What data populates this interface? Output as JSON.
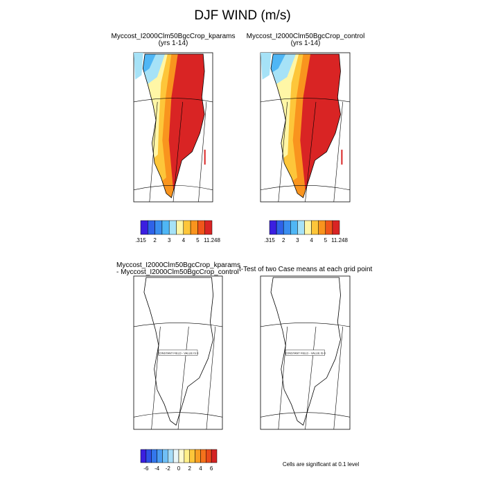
{
  "title": "DJF WIND (m/s)",
  "panels": [
    {
      "title": "Myccost_I2000Clm50BgcCrop_kparams",
      "subtitle": "(yrs 1-14)"
    },
    {
      "title": "Myccost_I2000Clm50BgcCrop_control",
      "subtitle": "(yrs 1-14)"
    },
    {
      "title_lines": [
        "Myccost_I2000Clm50BgcCrop_kparams",
        "- Myccost_I2000Clm50BgcCrop_control"
      ],
      "note": "CONSTANT FIELD - VALUE IS 0"
    },
    {
      "title": "t-Test of two Case means at each grid point",
      "note": "CONSTANT FIELD - VALUE IS 0"
    }
  ],
  "colorbars": [
    {
      "labels": [
        ".315",
        "2",
        "3",
        "4",
        "5",
        "11.248"
      ],
      "colors": [
        "#3b1fe0",
        "#2f62e8",
        "#3a8ef0",
        "#4fb6f5",
        "#a6e2f7",
        "#fff6a6",
        "#fdc63a",
        "#f9941e",
        "#f0561a",
        "#d92424"
      ]
    },
    {
      "labels": [
        ".315",
        "2",
        "3",
        "4",
        "5",
        "11.248"
      ],
      "colors": [
        "#3b1fe0",
        "#2f62e8",
        "#3a8ef0",
        "#4fb6f5",
        "#a6e2f7",
        "#fff6a6",
        "#fdc63a",
        "#f9941e",
        "#f0561a",
        "#d92424"
      ]
    },
    {
      "labels": [
        "-6",
        "-4",
        "-2",
        "0",
        "2",
        "4",
        "6"
      ],
      "colors": [
        "#3b1fe0",
        "#2f52e6",
        "#3377ec",
        "#4a9cf2",
        "#70bff6",
        "#a6dcf7",
        "#e8f6f8",
        "#fffbd0",
        "#fff08a",
        "#fdc63a",
        "#f9a024",
        "#f5721c",
        "#ea4a1a",
        "#d42424"
      ]
    }
  ],
  "footer": "Cells are significant at 0.1 level"
}
